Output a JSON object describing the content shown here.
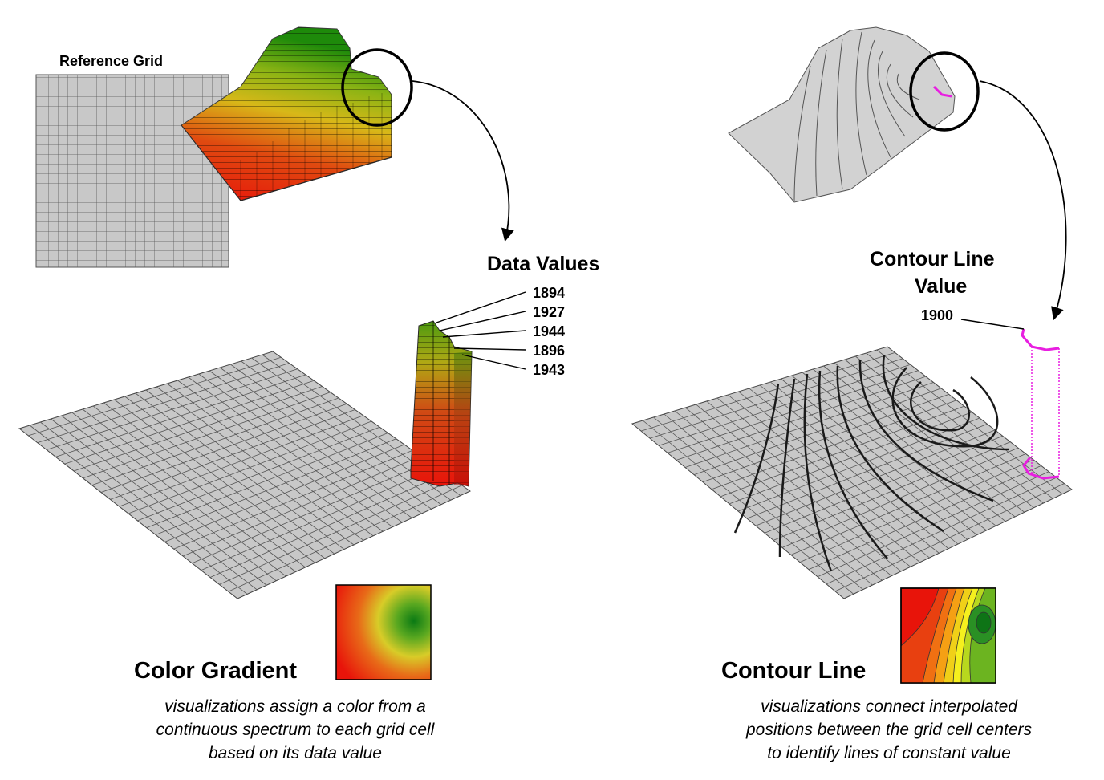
{
  "left": {
    "reference_grid_label": "Reference Grid",
    "data_values_label": "Data Values",
    "data_values": [
      "1894",
      "1927",
      "1944",
      "1896",
      "1943"
    ],
    "heading": "Color Gradient",
    "caption": [
      "visualizations assign a color from a",
      "continuous spectrum to each grid cell",
      "based on its data value"
    ]
  },
  "right": {
    "contour_value_label": [
      "Contour Line",
      "Value"
    ],
    "contour_value": "1900",
    "heading": "Contour Line",
    "caption": [
      "visualizations connect interpolated",
      "positions between the grid cell centers",
      "to identify lines of constant value"
    ]
  },
  "colors": {
    "low": "#e8140a",
    "mid": "#e0c81e",
    "high": "#1e8a0a",
    "contour_highlight": "#e81ee0",
    "grid_fill": "#c8c8c8",
    "grid_line": "#555555"
  }
}
